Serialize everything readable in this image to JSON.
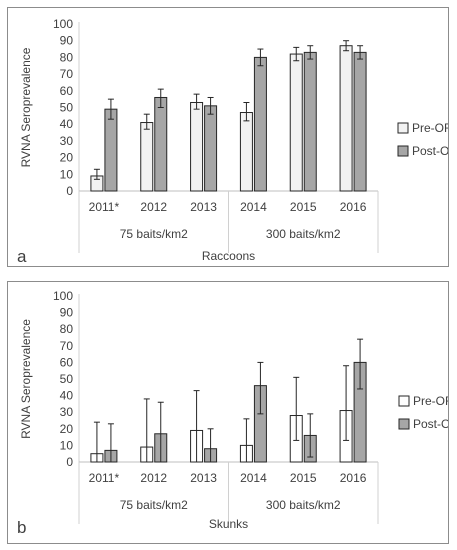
{
  "chart_data": [
    {
      "type": "bar",
      "panel_label": "a",
      "ylabel": "RVNA Seroprevalence",
      "xlabel": "Raccoons",
      "ylim": [
        0,
        100
      ],
      "yticks": [
        0,
        10,
        20,
        30,
        40,
        50,
        60,
        70,
        80,
        90,
        100
      ],
      "categories": [
        "2011*",
        "2012",
        "2013",
        "2014",
        "2015",
        "2016"
      ],
      "groups": [
        {
          "label": "75 baits/km2",
          "categories": [
            "2011*",
            "2012",
            "2013"
          ]
        },
        {
          "label": "300 baits/km2",
          "categories": [
            "2014",
            "2015",
            "2016"
          ]
        }
      ],
      "series": [
        {
          "name": "Pre-ORV",
          "color": "#f2f2f2",
          "values": [
            9,
            41,
            53,
            47,
            82,
            87
          ],
          "error_low": [
            7,
            37,
            49,
            42,
            78,
            84
          ],
          "error_high": [
            13,
            46,
            58,
            53,
            86,
            90
          ]
        },
        {
          "name": "Post-ORV",
          "color": "#a6a6a6",
          "values": [
            49,
            56,
            51,
            80,
            83,
            83
          ],
          "error_low": [
            43,
            50,
            46,
            75,
            79,
            79
          ],
          "error_high": [
            55,
            61,
            56,
            85,
            87,
            87
          ]
        }
      ],
      "grid": false,
      "legend_position": "right"
    },
    {
      "type": "bar",
      "panel_label": "b",
      "ylabel": "RVNA Seroprevalence",
      "xlabel": "Skunks",
      "ylim": [
        0,
        100
      ],
      "yticks": [
        0,
        10,
        20,
        30,
        40,
        50,
        60,
        70,
        80,
        90,
        100
      ],
      "categories": [
        "2011*",
        "2012",
        "2013",
        "2014",
        "2015",
        "2016"
      ],
      "groups": [
        {
          "label": "75 baits/km2",
          "categories": [
            "2011*",
            "2012",
            "2013"
          ]
        },
        {
          "label": "300 baits/km2",
          "categories": [
            "2014",
            "2015",
            "2016"
          ]
        }
      ],
      "series": [
        {
          "name": "Pre-ORV",
          "color": "#ffffff",
          "values": [
            5,
            9,
            19,
            10,
            28,
            31
          ],
          "error_low": [
            0,
            0,
            0,
            0,
            13,
            13
          ],
          "error_high": [
            24,
            38,
            43,
            26,
            51,
            58
          ]
        },
        {
          "name": "Post-ORV",
          "color": "#a6a6a6",
          "values": [
            7,
            17,
            8,
            46,
            16,
            60
          ],
          "error_low": [
            0,
            0,
            0,
            29,
            3,
            44
          ],
          "error_high": [
            23,
            36,
            20,
            60,
            29,
            74
          ]
        }
      ],
      "grid": false,
      "legend_position": "right"
    }
  ]
}
